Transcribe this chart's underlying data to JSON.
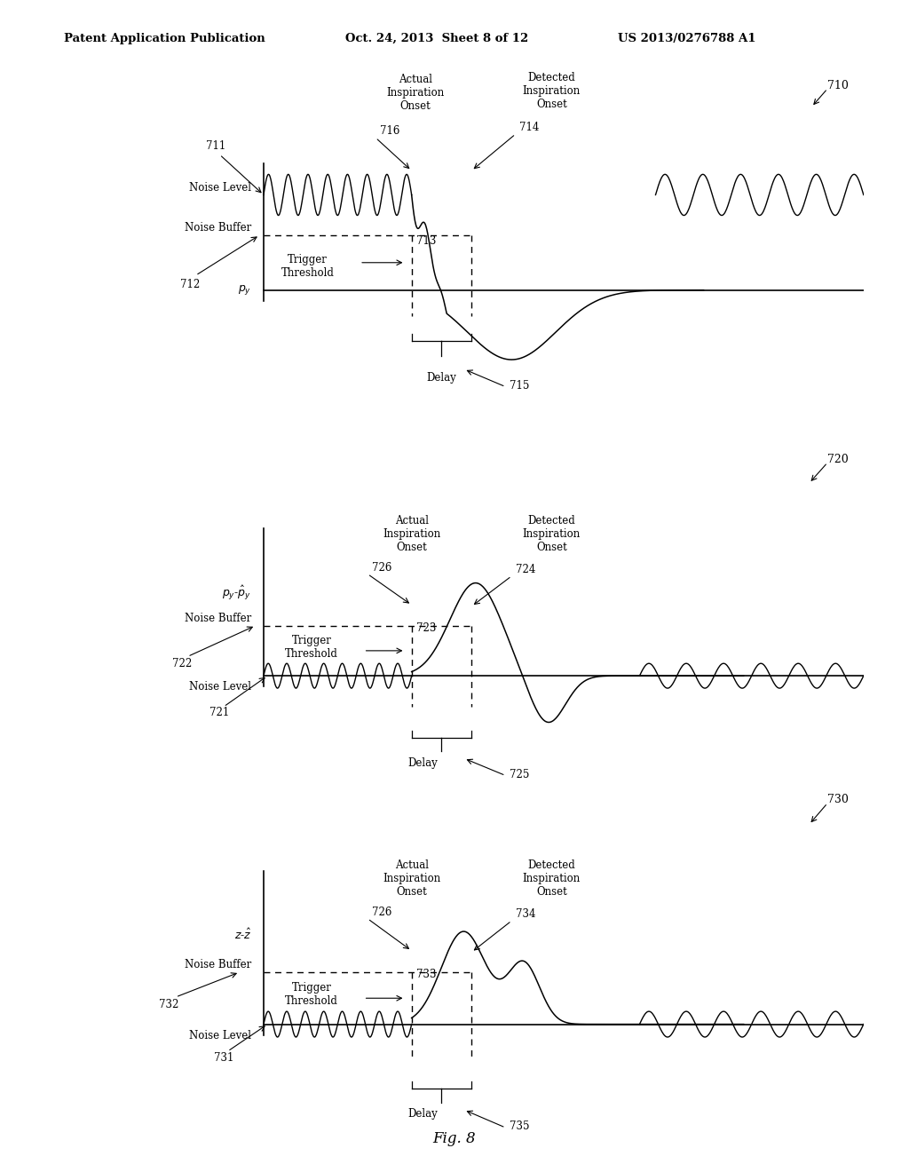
{
  "bg_color": "#ffffff",
  "header_left": "Patent Application Publication",
  "header_mid": "Oct. 24, 2013  Sheet 8 of 12",
  "header_right": "US 2013/0276788 A1",
  "fig_label": "Fig. 8"
}
